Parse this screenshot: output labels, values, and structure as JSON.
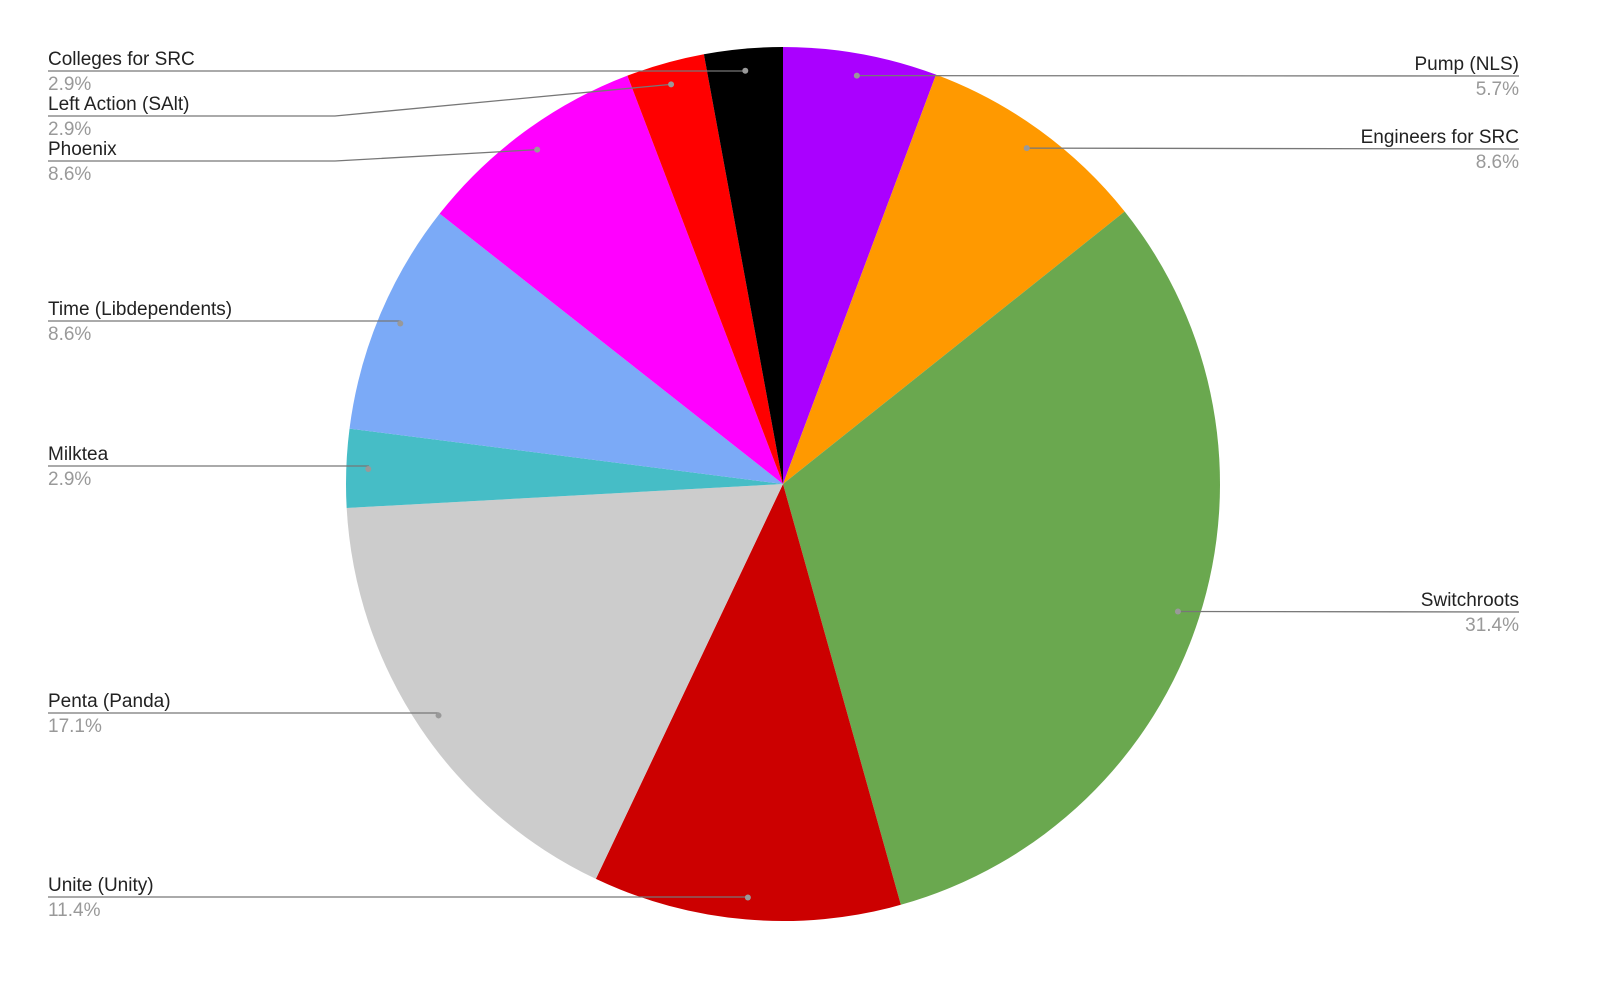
{
  "chart_data": {
    "type": "pie",
    "title": "",
    "start_angle": "top, clockwise",
    "slices": [
      {
        "label": "Pump (NLS)",
        "value": 5.7,
        "pct_label": "5.7%",
        "color": "#aa00ff"
      },
      {
        "label": "Engineers for SRC",
        "value": 8.6,
        "pct_label": "8.6%",
        "color": "#ff9900"
      },
      {
        "label": "Switchroots",
        "value": 31.4,
        "pct_label": "31.4%",
        "color": "#6aa84f"
      },
      {
        "label": "Unite (Unity)",
        "value": 11.4,
        "pct_label": "11.4%",
        "color": "#cc0000"
      },
      {
        "label": "Penta (Panda)",
        "value": 17.1,
        "pct_label": "17.1%",
        "color": "#cccccc"
      },
      {
        "label": "Milktea",
        "value": 2.9,
        "pct_label": "2.9%",
        "color": "#46bdc6"
      },
      {
        "label": "Time (Libdependents)",
        "value": 8.6,
        "pct_label": "8.6%",
        "color": "#7baaf7"
      },
      {
        "label": "Phoenix",
        "value": 8.6,
        "pct_label": "8.6%",
        "color": "#ff00ff"
      },
      {
        "label": "Left Action (SAlt)",
        "value": 2.9,
        "pct_label": "2.9%",
        "color": "#ff0000"
      },
      {
        "label": "Colleges for SRC",
        "value": 2.9,
        "pct_label": "2.9%",
        "color": "#000000"
      }
    ],
    "legend": "outside labels with leader lines"
  }
}
